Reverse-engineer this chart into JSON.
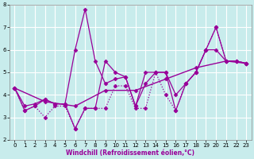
{
  "xlabel": "Windchill (Refroidissement éolien,°C)",
  "background_color": "#c8ecec",
  "line_color": "#990099",
  "grid_color": "#ffffff",
  "xlim": [
    -0.5,
    23.5
  ],
  "ylim": [
    2,
    8
  ],
  "yticks": [
    2,
    3,
    4,
    5,
    6,
    7,
    8
  ],
  "xticks": [
    0,
    1,
    2,
    3,
    4,
    5,
    6,
    7,
    8,
    9,
    10,
    11,
    12,
    13,
    14,
    15,
    16,
    17,
    18,
    19,
    20,
    21,
    22,
    23
  ],
  "series": [
    {
      "x": [
        0,
        1,
        2,
        3,
        4,
        5,
        6,
        7,
        8,
        9,
        10,
        11,
        12,
        13,
        14,
        15,
        16,
        17,
        18,
        19,
        20,
        21,
        22,
        23
      ],
      "y": [
        4.3,
        3.3,
        3.5,
        3.0,
        3.5,
        3.5,
        2.5,
        3.4,
        3.4,
        3.4,
        4.4,
        4.4,
        3.4,
        3.4,
        5.0,
        4.0,
        3.3,
        4.5,
        5.0,
        6.0,
        7.0,
        5.5,
        5.5,
        5.4
      ],
      "style": "dotted",
      "lw": 0.9
    },
    {
      "x": [
        0,
        1,
        2,
        3,
        4,
        5,
        6,
        7,
        8,
        9,
        10,
        11,
        12,
        13,
        14,
        15,
        16,
        17,
        18,
        19,
        20,
        21,
        22,
        23
      ],
      "y": [
        4.3,
        3.5,
        3.6,
        3.8,
        3.6,
        3.6,
        6.0,
        7.8,
        5.5,
        4.5,
        4.7,
        4.8,
        3.5,
        4.5,
        5.0,
        5.0,
        4.0,
        4.5,
        5.0,
        6.0,
        6.0,
        5.5,
        5.5,
        5.4
      ],
      "style": "solid",
      "lw": 0.9
    },
    {
      "x": [
        0,
        1,
        2,
        3,
        4,
        5,
        6,
        7,
        8,
        9,
        10,
        11,
        12,
        13,
        14,
        15,
        16,
        17,
        18,
        19,
        20,
        21,
        22,
        23
      ],
      "y": [
        4.3,
        3.3,
        3.5,
        3.8,
        3.6,
        3.6,
        2.5,
        3.4,
        3.4,
        5.5,
        5.0,
        4.8,
        3.5,
        5.0,
        5.0,
        5.0,
        3.3,
        4.5,
        5.0,
        6.0,
        7.0,
        5.5,
        5.5,
        5.4
      ],
      "style": "solid",
      "lw": 0.9
    },
    {
      "x": [
        0,
        3,
        6,
        9,
        12,
        15,
        18,
        21,
        23
      ],
      "y": [
        4.3,
        3.7,
        3.5,
        4.2,
        4.2,
        4.7,
        5.2,
        5.5,
        5.4
      ],
      "style": "solid",
      "lw": 1.0
    }
  ],
  "marker": "D",
  "markersize": 2.5,
  "xlabel_fontsize": 5.5,
  "tick_fontsize": 5,
  "xlabel_color": "#990099"
}
